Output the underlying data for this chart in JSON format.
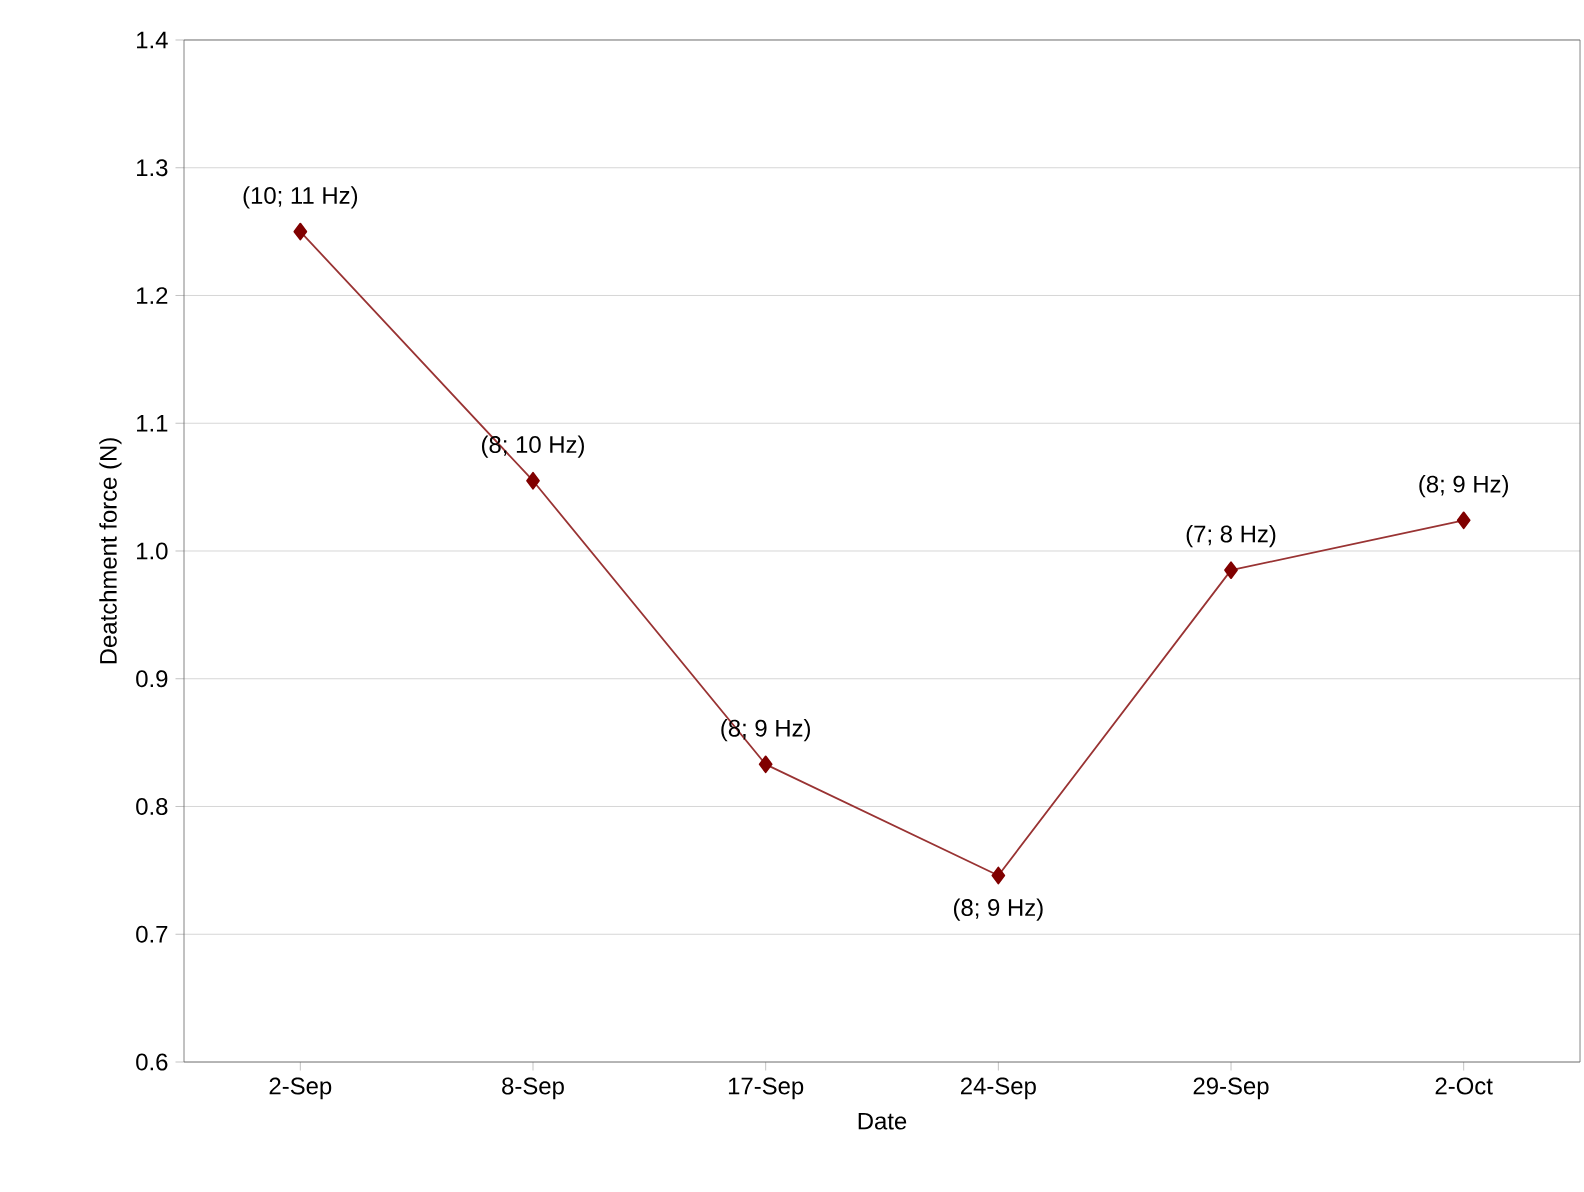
{
  "chart_data": {
    "type": "line",
    "xlabel": "Date",
    "ylabel": "Deatchment force (N)",
    "categories": [
      "2-Sep",
      "8-Sep",
      "17-Sep",
      "24-Sep",
      "29-Sep",
      "2-Oct"
    ],
    "series": [
      {
        "color": "#800000",
        "values": [
          1.25,
          1.055,
          0.833,
          0.746,
          0.985,
          1.024
        ]
      }
    ],
    "ylim": [
      0.6,
      1.4
    ],
    "yticks": [
      {
        "value": 0.6,
        "label": "0.6"
      },
      {
        "value": 0.7,
        "label": "0.7"
      },
      {
        "value": 0.8,
        "label": "0.8"
      },
      {
        "value": 0.9,
        "label": "0.9"
      },
      {
        "value": 1.0,
        "label": "1.0"
      },
      {
        "value": 1.1,
        "label": "1.1"
      },
      {
        "value": 1.2,
        "label": "1.2"
      },
      {
        "value": 1.3,
        "label": "1.3"
      },
      {
        "value": 1.4,
        "label": "1.4"
      }
    ],
    "grid": "y",
    "marker": "diamond",
    "line_style": "solid",
    "annotations": [
      {
        "text": "(10; 11 Hz)",
        "x": "2-Sep",
        "y": 1.25
      },
      {
        "text": "(8; 10 Hz)",
        "x": "8-Sep",
        "y": 1.055
      },
      {
        "text": "(8; 9 Hz)",
        "x": "17-Sep",
        "y": 0.833
      },
      {
        "text": "(8; 9 Hz)",
        "x": "24-Sep",
        "y": 0.746
      },
      {
        "text": "(7; 8 Hz)",
        "x": "29-Sep",
        "y": 0.985
      },
      {
        "text": "(8; 9 Hz)",
        "x": "2-Oct",
        "y": 1.024
      }
    ]
  }
}
